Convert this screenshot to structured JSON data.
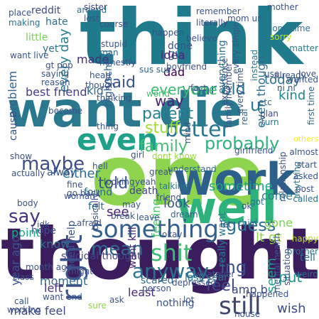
{
  "words": [
    {
      "text": "think",
      "color": "#1f7a8c"
    },
    {
      "text": "want die",
      "color": "#2a788e"
    },
    {
      "text": "thought",
      "color": "#3b1d5e"
    },
    {
      "text": "one",
      "color": "#8ed44f"
    },
    {
      "text": "work",
      "color": "#2c5f8a"
    },
    {
      "text": "well",
      "color": "#2db27d"
    },
    {
      "text": "even",
      "color": "#1fa088"
    },
    {
      "text": "right",
      "color": "#3b528b"
    },
    {
      "text": "something",
      "color": "#35608d"
    },
    {
      "text": "still",
      "color": "#40466b"
    },
    {
      "text": "anyway",
      "color": "#2c728e"
    },
    {
      "text": "better",
      "color": "#2a788e"
    },
    {
      "text": "year old",
      "color": "#2b6f8e"
    },
    {
      "text": "said",
      "color": "#3b528b"
    },
    {
      "text": "maybe",
      "color": "#3e4a89"
    },
    {
      "text": "probably",
      "color": "#2fb47c"
    },
    {
      "text": "shit",
      "color": "#3fbc73"
    },
    {
      "text": "mean",
      "color": "#31688e"
    },
    {
      "text": "say",
      "color": "#463480"
    },
    {
      "text": "told",
      "color": "#3a548c"
    },
    {
      "text": "family",
      "color": "#44bf70"
    },
    {
      "text": "parent",
      "color": "#26828e"
    },
    {
      "text": "everyone",
      "color": "#3dbc74"
    },
    {
      "text": "every day",
      "color": "#297b8e"
    },
    {
      "text": "stuff",
      "color": "#9fda3a"
    },
    {
      "text": "guess",
      "color": "#2d708e"
    },
    {
      "text": "way",
      "color": "#482374"
    },
    {
      "text": "feel",
      "color": "#3e4989"
    },
    {
      "text": "ing",
      "color": "#3b528b"
    },
    {
      "text": "make feel",
      "color": "#3f4788"
    },
    {
      "text": "seem",
      "color": "#1f9e89"
    },
    {
      "text": "wish",
      "color": "#3e4a89"
    },
    {
      "text": "put",
      "color": "#21918c"
    },
    {
      "text": "lt gt",
      "color": "#8fd744"
    },
    {
      "text": "even though",
      "color": "#2f6c8e"
    },
    {
      "text": "today",
      "color": "#2d708e"
    },
    {
      "text": "kind",
      "color": "#25848e"
    },
    {
      "text": "gone",
      "color": "#7ad151"
    },
    {
      "text": "come",
      "color": "#287c8e"
    },
    {
      "text": "either",
      "color": "#2c718e"
    },
    {
      "text": "best friend",
      "color": "#433e85"
    },
    {
      "text": "problem",
      "color": "#34618d"
    },
    {
      "text": "see",
      "color": "#482475"
    },
    {
      "text": "sometime",
      "color": "#20a386"
    },
    {
      "text": "look",
      "color": "#3b528b"
    },
    {
      "text": "feeling",
      "color": "#4ac16d"
    },
    {
      "text": "point",
      "color": "#22a785"
    },
    {
      "text": "alway",
      "color": "#3a548c"
    },
    {
      "text": "u",
      "color": "#2a788e"
    },
    {
      "text": "year ago",
      "color": "#3b528b"
    },
    {
      "text": "kid",
      "color": "#31688e"
    },
    {
      "text": "reddit",
      "color": "#3f4889"
    },
    {
      "text": "hate",
      "color": "#2e6e8e"
    },
    {
      "text": "little",
      "color": "#7ad151"
    },
    {
      "text": "yet",
      "color": "#2c718e"
    },
    {
      "text": "cause",
      "color": "#3b528b"
    },
    {
      "text": "high school",
      "color": "#33628d"
    },
    {
      "text": "made",
      "color": "#472d7b"
    },
    {
      "text": "guy",
      "color": "#31688e"
    },
    {
      "text": "idea",
      "color": "#482576"
    },
    {
      "text": "dad",
      "color": "#440154"
    },
    {
      "text": "done",
      "color": "#3b528b"
    },
    {
      "text": "everything",
      "color": "#2c718e"
    },
    {
      "text": "need help",
      "color": "#3b528b"
    },
    {
      "text": "moment",
      "color": "#31688e"
    },
    {
      "text": "left",
      "color": "#46327e"
    },
    {
      "text": "know",
      "color": "#2c718e"
    },
    {
      "text": "hope",
      "color": "#3b528b"
    },
    {
      "text": "suicidal thought",
      "color": "#414487"
    },
    {
      "text": "amp b",
      "color": "#3e4a89"
    },
    {
      "text": "tell",
      "color": "#2d708e"
    },
    {
      "text": "least",
      "color": "#472c7a"
    },
    {
      "text": "scared",
      "color": "#31688e"
    },
    {
      "text": "nothing",
      "color": "#3b528b"
    },
    {
      "text": "last year",
      "color": "#2a788e"
    },
    {
      "text": "found",
      "color": "#31688e"
    },
    {
      "text": "felt",
      "color": "#2d708e"
    },
    {
      "text": "death",
      "color": "#414487"
    },
    {
      "text": "want kill",
      "color": "#482677"
    },
    {
      "text": "really want",
      "color": "#2a788e"
    },
    {
      "text": "dont know",
      "color": "#9bd93c"
    },
    {
      "text": "understand",
      "color": "#31688e"
    },
    {
      "text": "fact",
      "color": "#3b528b"
    },
    {
      "text": "world",
      "color": "#44bf70"
    },
    {
      "text": "around",
      "color": "#2c718e"
    },
    {
      "text": "man",
      "color": "#31688e"
    },
    {
      "text": "sus sus",
      "color": "#31688e"
    },
    {
      "text": "instead",
      "color": "#2a788e"
    },
    {
      "text": "already",
      "color": "#3b528b"
    },
    {
      "text": "literally",
      "color": "#3e4a89"
    },
    {
      "text": "mom ur",
      "color": "#3b528b"
    },
    {
      "text": "believe",
      "color": "#3b528b"
    },
    {
      "text": "etc",
      "color": "#31688e"
    },
    {
      "text": "use",
      "color": "#3b528b"
    },
    {
      "text": "turn",
      "color": "#2c718e"
    },
    {
      "text": "plan",
      "color": "#3e4a89"
    },
    {
      "text": "real",
      "color": "#31688e"
    },
    {
      "text": "almost",
      "color": "#3b528b"
    },
    {
      "text": "called",
      "color": "#2c718e"
    },
    {
      "text": "others",
      "color": "#fde725"
    },
    {
      "text": "anything",
      "color": "#2a788e"
    },
    {
      "text": "post",
      "color": "#3b528b"
    },
    {
      "text": "brother",
      "color": "#2c718e"
    },
    {
      "text": "happy",
      "color": "#b5de2b"
    },
    {
      "text": "weird",
      "color": "#31688e"
    },
    {
      "text": "mental health",
      "color": "#3b528b"
    },
    {
      "text": "child",
      "color": "#2c718e"
    },
    {
      "text": "ok",
      "color": "#3b528b"
    },
    {
      "text": "got",
      "color": "#2c718e"
    },
    {
      "text": "girlfriend",
      "color": "#3b528b"
    },
    {
      "text": "dream",
      "color": "#31688e"
    },
    {
      "text": "talking",
      "color": "#2a788e"
    },
    {
      "text": "basically",
      "color": "#3e4a89"
    },
    {
      "text": "mother",
      "color": "#3b528b"
    },
    {
      "text": "sister",
      "color": "#3e4a89"
    },
    {
      "text": "lost",
      "color": "#3b528b"
    },
    {
      "text": "making",
      "color": "#2c718e"
    },
    {
      "text": "place",
      "color": "#3b528b"
    },
    {
      "text": "long time",
      "color": "#2c718e"
    },
    {
      "text": "matter",
      "color": "#2a788e"
    },
    {
      "text": "love",
      "color": "#3b528b"
    },
    {
      "text": "first time",
      "color": "#31688e"
    },
    {
      "text": "though",
      "color": "#3b528b"
    },
    {
      "text": "head",
      "color": "#3b528b"
    },
    {
      "text": "want live",
      "color": "#3b528b"
    },
    {
      "text": "saying",
      "color": "#3b528b"
    },
    {
      "text": "actually",
      "color": "#3b528b"
    },
    {
      "text": "become",
      "color": "#3b528b"
    },
    {
      "text": "show",
      "color": "#3b528b"
    },
    {
      "text": "woman",
      "color": "#3b528b"
    },
    {
      "text": "body",
      "color": "#3b528b"
    },
    {
      "text": "class",
      "color": "#3b528b"
    },
    {
      "text": "month ago",
      "color": "#3b528b"
    },
    {
      "text": "call",
      "color": "#3b528b"
    },
    {
      "text": "working",
      "color": "#3b528b"
    },
    {
      "text": "sure",
      "color": "#8fd744"
    },
    {
      "text": "house",
      "color": "#3b528b"
    },
    {
      "text": "fine",
      "color": "#3b528b"
    },
    {
      "text": "go back",
      "color": "#3b528b"
    },
    {
      "text": "afraid",
      "color": "#3b528b"
    },
    {
      "text": "might",
      "color": "#3b528b"
    },
    {
      "text": "ask",
      "color": "#3b528b"
    },
    {
      "text": "whatever",
      "color": "#3b528b"
    },
    {
      "text": "depressed",
      "color": "#3b528b"
    },
    {
      "text": "person",
      "color": "#3b528b"
    },
    {
      "text": "idk",
      "color": "#3b528b"
    },
    {
      "text": "looking",
      "color": "#3b528b"
    },
    {
      "text": "hell",
      "color": "#3b528b"
    },
    {
      "text": "may",
      "color": "#3b528b"
    },
    {
      "text": "break",
      "color": "#3b528b"
    },
    {
      "text": "leave",
      "color": "#3b528b"
    },
    {
      "text": "okay",
      "color": "#3b528b"
    },
    {
      "text": "lot",
      "color": "#3b528b"
    },
    {
      "text": "happened",
      "color": "#3b528b"
    },
    {
      "text": "relationship",
      "color": "#3b528b"
    },
    {
      "text": "boyfriend",
      "color": "#3b528b"
    },
    {
      "text": "course",
      "color": "#3b528b"
    },
    {
      "text": "remember",
      "color": "#3b528b"
    },
    {
      "text": "honestly",
      "color": "#3b528b"
    },
    {
      "text": "thinking",
      "color": "#3b528b"
    },
    {
      "text": "girl",
      "color": "#3b528b"
    },
    {
      "text": "great",
      "color": "#3b528b"
    },
    {
      "text": "mind",
      "color": "#3b528b"
    },
    {
      "text": "sorry",
      "color": "#c2df23"
    },
    {
      "text": "start",
      "color": "#3b528b"
    },
    {
      "text": "asked",
      "color": "#3b528b"
    },
    {
      "text": "every time",
      "color": "#3b528b"
    },
    {
      "text": "every single",
      "color": "#3b528b"
    },
    {
      "text": "experience",
      "color": "#3b528b"
    },
    {
      "text": "wanted",
      "color": "#3b528b"
    },
    {
      "text": "want end",
      "color": "#3b528b"
    },
    {
      "text": "gt pop",
      "color": "#3b528b"
    },
    {
      "text": "reason",
      "color": "#3b528b"
    },
    {
      "text": "stupid",
      "color": "#3b528b"
    },
    {
      "text": "happen",
      "color": "#3b528b"
    },
    {
      "text": "ni ni",
      "color": "#3b528b"
    },
    {
      "text": "situation",
      "color": "#3b528b"
    },
    {
      "text": "let",
      "color": "#3b528b"
    },
    {
      "text": "thing",
      "color": "#3b528b"
    },
    {
      "text": "yeah",
      "color": "#3b528b"
    },
    {
      "text": "friend",
      "color": "#3b528b"
    },
    {
      "text": "family member",
      "color": "#3b528b"
    }
  ]
}
